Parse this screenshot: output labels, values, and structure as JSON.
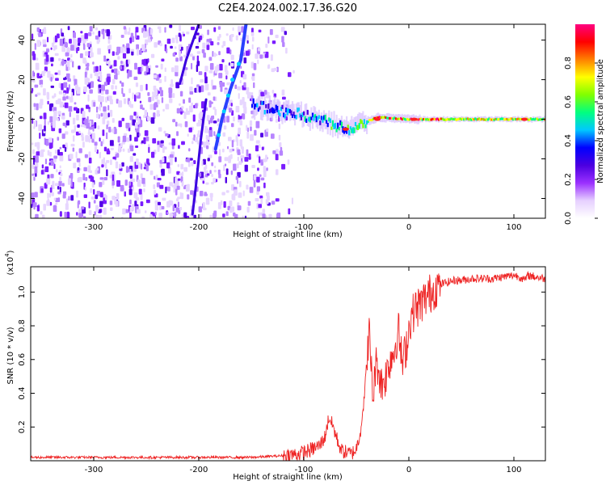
{
  "figure_title": "C2E4.2024.002.17.36.G20",
  "chart_data": [
    {
      "type": "heatmap",
      "title": "C2E4.2024.002.17.36.G20",
      "xlabel": "Height of straight line (km)",
      "ylabel": "Frequency (Hz)",
      "xlim": [
        -360,
        130
      ],
      "ylim": [
        -50,
        48
      ],
      "xticks": [
        -300,
        -200,
        -100,
        0,
        100
      ],
      "yticks": [
        -40,
        -20,
        0,
        20,
        40
      ],
      "colorbar": {
        "label": "Normalized spectral amplitude",
        "range": [
          0,
          1
        ],
        "ticks": [
          "0.0",
          "0.2",
          "0.4",
          "0.6",
          "0.8"
        ],
        "tick_values": [
          0.0,
          0.2,
          0.4,
          0.6,
          0.8
        ],
        "colormap": [
          "#ffffff",
          "#e6d0ff",
          "#9b30ff",
          "#4b00e0",
          "#0000ff",
          "#00c8ff",
          "#00ff80",
          "#80ff00",
          "#ffff00",
          "#ff8000",
          "#ff0000",
          "#ff0080"
        ]
      },
      "features": {
        "noise_region_km": [
          -360,
          -130
        ],
        "slanted_tracks": [
          {
            "from": [
              -200,
              48
            ],
            "to": [
              -197,
              38
            ],
            "via": [
              -215,
              18
            ],
            "end": [
              -197,
              -40
            ]
          },
          {
            "from": [
              -155,
              48
            ],
            "to": [
              -185,
              -15
            ]
          }
        ],
        "central_line": [
          [
            -150,
            7
          ],
          [
            -130,
            5
          ],
          [
            -100,
            2
          ],
          [
            -80,
            -1
          ],
          [
            -60,
            -5
          ],
          [
            -45,
            -2
          ],
          [
            -30,
            1
          ],
          [
            0,
            0
          ],
          [
            130,
            0
          ]
        ]
      }
    },
    {
      "type": "line",
      "xlabel": "Height of straight line (km)",
      "ylabel": "SNR (10 * v/v)",
      "multiplier_label": "(x10",
      "multiplier_exp": "4",
      "multiplier_close": ")",
      "xlim": [
        -360,
        130
      ],
      "ylim": [
        0,
        1.15
      ],
      "xticks": [
        -300,
        -200,
        -100,
        0,
        100
      ],
      "yticks": [
        "0.2",
        "0.4",
        "0.6",
        "0.8",
        "1.0"
      ],
      "ytick_values": [
        0.2,
        0.4,
        0.6,
        0.8,
        1.0
      ],
      "color": "#ee2222",
      "series": [
        {
          "name": "SNR",
          "x": [
            -360,
            -250,
            -150,
            -120,
            -105,
            -95,
            -85,
            -80,
            -76,
            -72,
            -68,
            -64,
            -60,
            -55,
            -50,
            -46,
            -42,
            -38,
            -34,
            -32,
            -30,
            -26,
            -22,
            -18,
            -14,
            -10,
            -6,
            -2,
            2,
            6,
            10,
            14,
            20,
            26,
            32,
            38,
            44,
            50,
            60,
            70,
            80,
            90,
            100,
            106,
            110,
            114,
            120,
            130
          ],
          "y": [
            0.02,
            0.02,
            0.02,
            0.03,
            0.04,
            0.06,
            0.09,
            0.14,
            0.26,
            0.2,
            0.12,
            0.06,
            0.05,
            0.04,
            0.07,
            0.18,
            0.4,
            0.78,
            0.36,
            0.55,
            0.58,
            0.45,
            0.5,
            0.6,
            0.65,
            0.78,
            0.56,
            0.7,
            0.85,
            0.9,
            0.92,
            0.95,
            0.99,
            1.03,
            1.05,
            1.06,
            1.07,
            1.07,
            1.08,
            1.08,
            1.08,
            1.09,
            1.1,
            1.09,
            1.07,
            1.1,
            1.09,
            1.08
          ]
        }
      ]
    }
  ]
}
